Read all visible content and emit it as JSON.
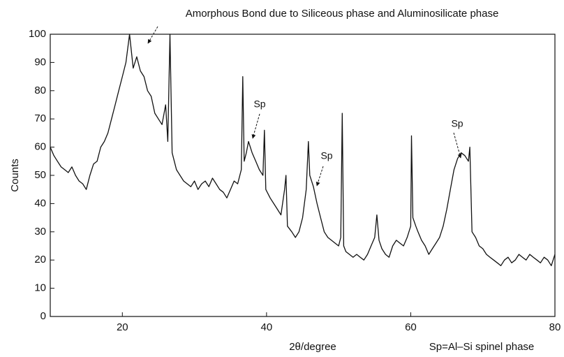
{
  "chart_data": {
    "type": "line",
    "x_label": "2θ/degree",
    "y_label": "Counts",
    "annotations": [
      "Amorphous Bond due to Siliceous phase and Aluminosilicate phase",
      "Sp",
      "Sp",
      "Sp",
      "Sp=Al–Si spinel phase"
    ],
    "xlim": [
      10,
      80
    ],
    "ylim": [
      0,
      100
    ],
    "xticks": [
      20,
      40,
      60,
      80
    ],
    "yticks": [
      0,
      10,
      20,
      30,
      40,
      50,
      60,
      70,
      80,
      90,
      100
    ],
    "series": [
      {
        "color": "#111111",
        "x": [
          10,
          10.5,
          11,
          11.5,
          12,
          12.5,
          13,
          13.5,
          14,
          14.5,
          15,
          15.5,
          16,
          16.5,
          17,
          17.5,
          18,
          18.5,
          19,
          19.5,
          20,
          20.5,
          21,
          21.5,
          22,
          22.5,
          23,
          23.5,
          24,
          24.5,
          25,
          25.5,
          26,
          26.3,
          26.6,
          26.9,
          27.2,
          27.5,
          28,
          28.5,
          29,
          29.5,
          30,
          30.5,
          31,
          31.5,
          32,
          32.5,
          33,
          33.5,
          34,
          34.5,
          35,
          35.5,
          36,
          36.5,
          36.7,
          36.9,
          37.2,
          37.5,
          38,
          38.5,
          39,
          39.5,
          39.7,
          39.9,
          40.5,
          41,
          41.5,
          42,
          42.5,
          42.7,
          42.9,
          43.5,
          44,
          44.5,
          45,
          45.5,
          45.8,
          46,
          46.5,
          47,
          47.5,
          48,
          48.5,
          49,
          49.5,
          50,
          50.3,
          50.5,
          50.7,
          51,
          51.5,
          52,
          52.5,
          53,
          53.5,
          54,
          54.5,
          55,
          55.3,
          55.6,
          56,
          56.5,
          57,
          57.5,
          58,
          58.5,
          59,
          59.5,
          60,
          60.1,
          60.3,
          60.7,
          61,
          61.5,
          62,
          62.5,
          63,
          63.5,
          64,
          64.5,
          65,
          65.5,
          66,
          66.5,
          67,
          67.5,
          68,
          68.2,
          68.5,
          69,
          69.5,
          70,
          70.5,
          71,
          71.5,
          72,
          72.5,
          73,
          73.5,
          74,
          74.5,
          75,
          75.5,
          76,
          76.5,
          77,
          77.5,
          78,
          78.5,
          79,
          79.5,
          80
        ],
        "values": [
          60,
          57,
          55,
          53,
          52,
          51,
          53,
          50,
          48,
          47,
          45,
          50,
          54,
          55,
          60,
          62,
          65,
          70,
          75,
          80,
          85,
          90,
          100,
          88,
          92,
          87,
          85,
          80,
          78,
          72,
          70,
          68,
          75,
          62,
          100,
          58,
          55,
          52,
          50,
          48,
          47,
          46,
          48,
          45,
          47,
          48,
          46,
          49,
          47,
          45,
          44,
          42,
          45,
          48,
          47,
          52,
          85,
          55,
          58,
          62,
          58,
          55,
          52,
          50,
          66,
          45,
          42,
          40,
          38,
          36,
          45,
          50,
          32,
          30,
          28,
          30,
          35,
          45,
          62,
          50,
          46,
          40,
          35,
          30,
          28,
          27,
          26,
          25,
          28,
          72,
          25,
          23,
          22,
          21,
          22,
          21,
          20,
          22,
          25,
          28,
          36,
          27,
          24,
          22,
          21,
          25,
          27,
          26,
          25,
          28,
          32,
          64,
          35,
          32,
          30,
          27,
          25,
          22,
          24,
          26,
          28,
          32,
          38,
          45,
          52,
          56,
          58,
          57,
          55,
          60,
          30,
          28,
          25,
          24,
          22,
          21,
          20,
          19,
          18,
          20,
          21,
          19,
          20,
          22,
          21,
          20,
          22,
          21,
          20,
          19,
          21,
          20,
          18,
          22
        ]
      }
    ]
  }
}
